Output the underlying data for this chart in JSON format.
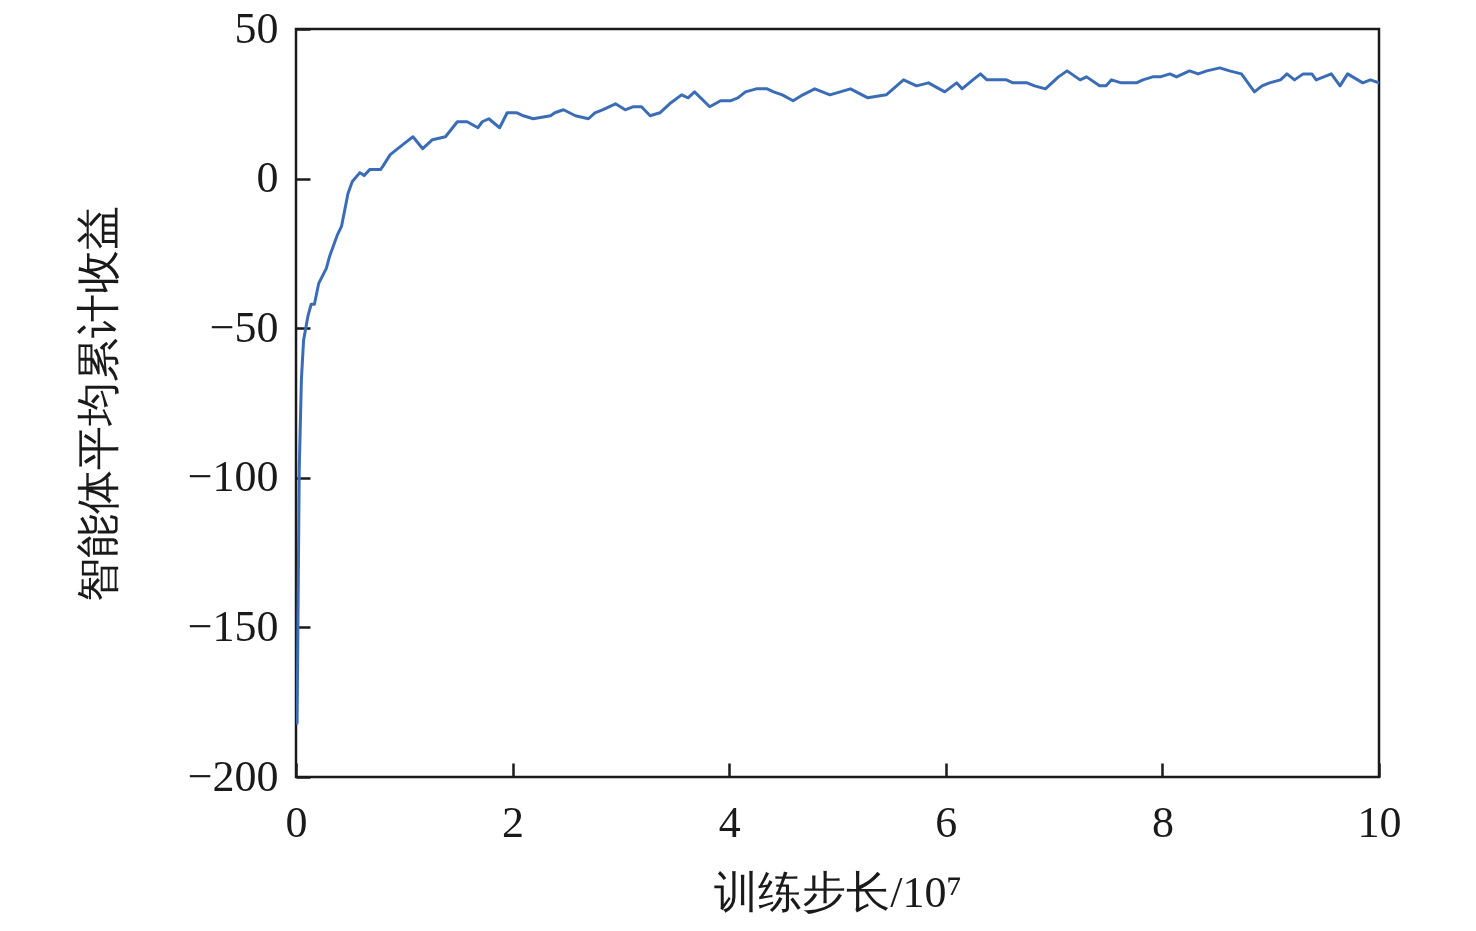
{
  "chart_data": {
    "type": "line",
    "xlabel": "训练步长/10⁷",
    "ylabel": "智能体平均累计收益",
    "color": "#3a6db5",
    "x": [
      0.01,
      0.02,
      0.03,
      0.05,
      0.07,
      0.11,
      0.14,
      0.17,
      0.21,
      0.28,
      0.31,
      0.38,
      0.42,
      0.48,
      0.52,
      0.59,
      0.63,
      0.68,
      0.78,
      0.8,
      0.87,
      0.94,
      1.01,
      1.08,
      1.17,
      1.26,
      1.38,
      1.49,
      1.58,
      1.68,
      1.72,
      1.78,
      1.88,
      1.95,
      2.04,
      2.1,
      2.19,
      2.35,
      2.39,
      2.47,
      2.58,
      2.7,
      2.76,
      2.83,
      2.95,
      3.04,
      3.11,
      3.19,
      3.27,
      3.36,
      3.45,
      3.56,
      3.62,
      3.68,
      3.82,
      3.92,
      4.01,
      4.08,
      4.15,
      4.25,
      4.35,
      4.41,
      4.49,
      4.59,
      4.68,
      4.79,
      4.93,
      5.12,
      5.28,
      5.45,
      5.61,
      5.73,
      5.84,
      5.99,
      6.1,
      6.15,
      6.25,
      6.32,
      6.38,
      6.56,
      6.62,
      6.75,
      6.82,
      6.92,
      7.04,
      7.12,
      7.24,
      7.3,
      7.42,
      7.48,
      7.53,
      7.62,
      7.76,
      7.82,
      7.91,
      7.98,
      8.07,
      8.13,
      8.25,
      8.33,
      8.41,
      8.53,
      8.62,
      8.73,
      8.79,
      8.85,
      8.92,
      8.99,
      9.09,
      9.15,
      9.22,
      9.3,
      9.38,
      9.42,
      9.56,
      9.64,
      9.71,
      9.85,
      9.92,
      10
    ],
    "values": [
      -182,
      -140,
      -97,
      -67,
      -54,
      -46,
      -42,
      -42,
      -35,
      -30,
      -26,
      -19,
      -16,
      -5,
      -1,
      2,
      1,
      3,
      3,
      4,
      8,
      10,
      12,
      14,
      10,
      13,
      14,
      19,
      19,
      17,
      19,
      20,
      17,
      22,
      22,
      21,
      20,
      21,
      22,
      23,
      21,
      20,
      22,
      23,
      25,
      23,
      24,
      24,
      21,
      22,
      25,
      28,
      27,
      29,
      24,
      26,
      26,
      27,
      29,
      30,
      30,
      29,
      28,
      26,
      28,
      30,
      28,
      30,
      27,
      28,
      33,
      31,
      32,
      29,
      32,
      30,
      33,
      35,
      33,
      33,
      32,
      32,
      31,
      30,
      34,
      36,
      33,
      34,
      31,
      31,
      33,
      32,
      32,
      33,
      34,
      34,
      35,
      34,
      36,
      35,
      36,
      37,
      36,
      35,
      32,
      29,
      31,
      32,
      33,
      35,
      33,
      35,
      35,
      33,
      35,
      31,
      35,
      32,
      33,
      32
    ],
    "xlim": [
      0,
      10
    ],
    "ylim": [
      -200,
      50
    ],
    "xticks": [
      0,
      2,
      4,
      6,
      8,
      10
    ],
    "yticks": [
      -200,
      -150,
      -100,
      -50,
      0,
      50
    ]
  }
}
